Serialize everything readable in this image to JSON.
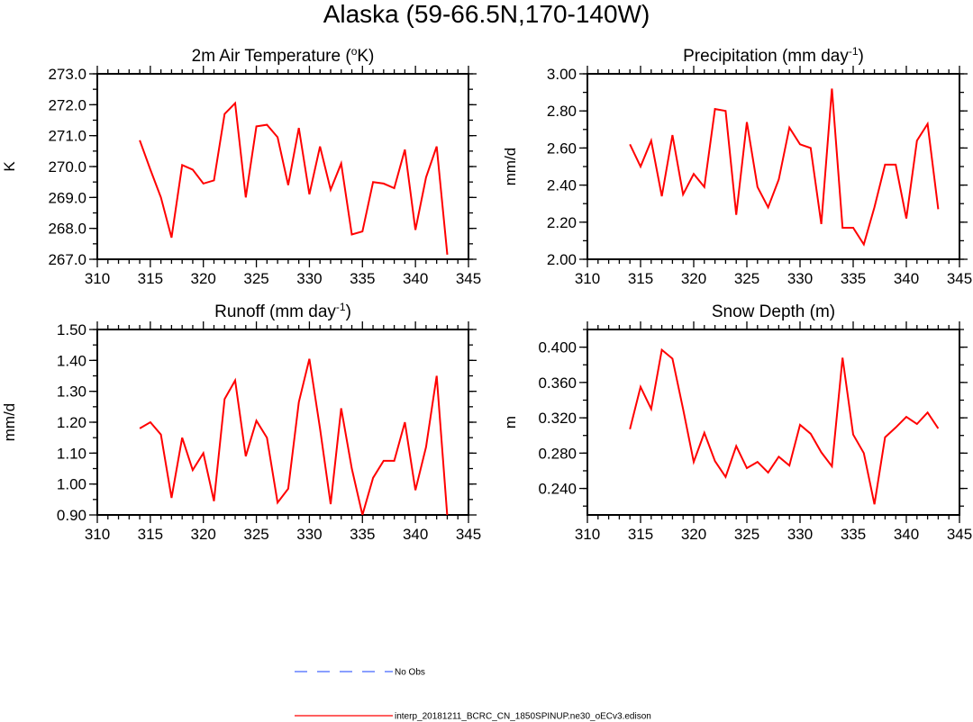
{
  "title": "Alaska (59-66.5N,170-140W)",
  "chart_data": [
    {
      "type": "line",
      "title": "2m Air Temperature (",
      "title_sup": "o",
      "title_tail": "K)",
      "ylabel": "K",
      "xlim": [
        310,
        345
      ],
      "ylim": [
        267.0,
        273.0
      ],
      "xticks": [
        310,
        315,
        320,
        325,
        330,
        335,
        340,
        345
      ],
      "yticks": [
        "267.0",
        "268.0",
        "269.0",
        "270.0",
        "271.0",
        "272.0",
        "273.0"
      ],
      "x": [
        314,
        315,
        316,
        317,
        318,
        319,
        320,
        321,
        322,
        323,
        324,
        325,
        326,
        327,
        328,
        329,
        330,
        331,
        332,
        333,
        334,
        335,
        336,
        337,
        338,
        339,
        340,
        341,
        342,
        343
      ],
      "series": [
        {
          "color": "#ff0000",
          "values": [
            270.85,
            269.9,
            269.0,
            267.7,
            270.05,
            269.9,
            269.45,
            269.55,
            271.7,
            272.05,
            269.0,
            271.3,
            271.35,
            270.95,
            269.4,
            271.25,
            269.1,
            270.65,
            269.25,
            270.1,
            267.8,
            267.9,
            269.5,
            269.45,
            269.3,
            270.55,
            267.95,
            269.65,
            270.65,
            267.15
          ]
        }
      ]
    },
    {
      "type": "line",
      "title": "Precipitation (mm day",
      "title_sup": "-1",
      "title_tail": ")",
      "ylabel": "mm/d",
      "xlim": [
        310,
        345
      ],
      "ylim": [
        2.0,
        3.0
      ],
      "xticks": [
        310,
        315,
        320,
        325,
        330,
        335,
        340,
        345
      ],
      "yticks": [
        "2.00",
        "2.20",
        "2.40",
        "2.60",
        "2.80",
        "3.00"
      ],
      "x": [
        314,
        315,
        316,
        317,
        318,
        319,
        320,
        321,
        322,
        323,
        324,
        325,
        326,
        327,
        328,
        329,
        330,
        331,
        332,
        333,
        334,
        335,
        336,
        337,
        338,
        339,
        340,
        341,
        342,
        343
      ],
      "series": [
        {
          "color": "#ff0000",
          "values": [
            2.62,
            2.5,
            2.64,
            2.34,
            2.67,
            2.35,
            2.46,
            2.39,
            2.81,
            2.8,
            2.24,
            2.74,
            2.39,
            2.28,
            2.43,
            2.71,
            2.62,
            2.6,
            2.19,
            2.92,
            2.17,
            2.17,
            2.08,
            2.28,
            2.51,
            2.51,
            2.22,
            2.64,
            2.73,
            2.27
          ]
        }
      ]
    },
    {
      "type": "line",
      "title": "Runoff (mm day",
      "title_sup": "-1",
      "title_tail": ")",
      "ylabel": "mm/d",
      "xlim": [
        310,
        345
      ],
      "ylim": [
        0.9,
        1.5
      ],
      "xticks": [
        310,
        315,
        320,
        325,
        330,
        335,
        340,
        345
      ],
      "yticks": [
        "0.90",
        "1.00",
        "1.10",
        "1.20",
        "1.30",
        "1.40",
        "1.50"
      ],
      "x": [
        314,
        315,
        316,
        317,
        318,
        319,
        320,
        321,
        322,
        323,
        324,
        325,
        326,
        327,
        328,
        329,
        330,
        331,
        332,
        333,
        334,
        335,
        336,
        337,
        338,
        339,
        340,
        341,
        342,
        343
      ],
      "series": [
        {
          "color": "#ff0000",
          "values": [
            1.18,
            1.2,
            1.16,
            0.955,
            1.15,
            1.045,
            1.1,
            0.945,
            1.275,
            1.335,
            1.09,
            1.205,
            1.15,
            0.94,
            0.985,
            1.265,
            1.405,
            1.18,
            0.935,
            1.245,
            1.05,
            0.9,
            1.02,
            1.075,
            1.075,
            1.2,
            0.98,
            1.12,
            1.35,
            0.895
          ]
        }
      ]
    },
    {
      "type": "line",
      "title": "Snow Depth (m)",
      "title_sup": "",
      "title_tail": "",
      "ylabel": "m",
      "xlim": [
        310,
        345
      ],
      "ylim": [
        0.21,
        0.42
      ],
      "xticks": [
        310,
        315,
        320,
        325,
        330,
        335,
        340,
        345
      ],
      "yticks": [
        "0.240",
        "0.280",
        "0.320",
        "0.360",
        "0.400"
      ],
      "ytick_values": [
        0.24,
        0.28,
        0.32,
        0.36,
        0.4
      ],
      "x": [
        314,
        315,
        316,
        317,
        318,
        319,
        320,
        321,
        322,
        323,
        324,
        325,
        326,
        327,
        328,
        329,
        330,
        331,
        332,
        333,
        334,
        335,
        336,
        337,
        338,
        339,
        340,
        341,
        342,
        343
      ],
      "series": [
        {
          "color": "#ff0000",
          "values": [
            0.307,
            0.355,
            0.33,
            0.397,
            0.387,
            0.33,
            0.27,
            0.303,
            0.271,
            0.253,
            0.288,
            0.263,
            0.27,
            0.258,
            0.276,
            0.266,
            0.312,
            0.302,
            0.281,
            0.265,
            0.388,
            0.301,
            0.28,
            0.222,
            0.298,
            0.309,
            0.321,
            0.313,
            0.326,
            0.308
          ]
        }
      ]
    }
  ],
  "legend": [
    {
      "label": "No Obs",
      "color": "#4466ff",
      "style": "dashed"
    },
    {
      "label": "interp_20181211_BCRC_CN_1850SPINUP.ne30_oECv3.edison",
      "color": "#ff0000",
      "style": "solid"
    }
  ]
}
